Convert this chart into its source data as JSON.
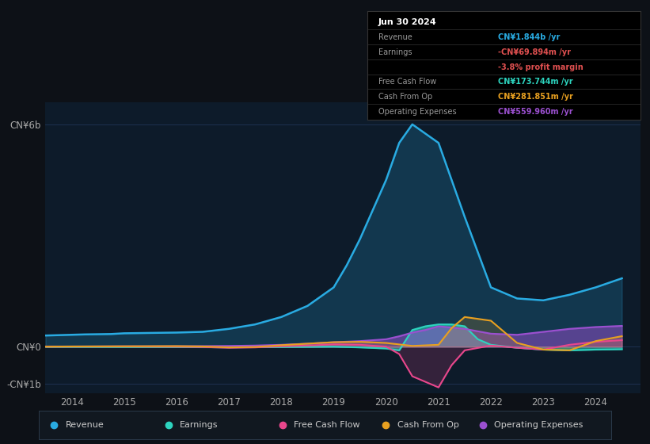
{
  "background_color": "#0d1117",
  "plot_bg_color": "#0d1b2a",
  "grid_color": "#1e3050",
  "y_ticks": [
    6000000000,
    0,
    -1000000000
  ],
  "y_tick_labels": [
    "CN¥6b",
    "CN¥0",
    "-CN¥1b"
  ],
  "x_ticks": [
    2014,
    2015,
    2016,
    2017,
    2018,
    2019,
    2020,
    2021,
    2022,
    2023,
    2024
  ],
  "legend": [
    {
      "label": "Revenue",
      "color": "#29abe2"
    },
    {
      "label": "Earnings",
      "color": "#2dd4bf"
    },
    {
      "label": "Free Cash Flow",
      "color": "#e8478c"
    },
    {
      "label": "Cash From Op",
      "color": "#e8a020"
    },
    {
      "label": "Operating Expenses",
      "color": "#9b50d0"
    }
  ],
  "infobox_title": "Jun 30 2024",
  "infobox_rows": [
    {
      "label": "Revenue",
      "value": "CN¥1.844b /yr",
      "value_color": "#29abe2",
      "label_color": "#999999"
    },
    {
      "label": "Earnings",
      "value": "-CN¥69.894m /yr",
      "value_color": "#e05050",
      "label_color": "#999999"
    },
    {
      "label": "",
      "value": "-3.8% profit margin",
      "value_color": "#e05050",
      "label_color": "#999999"
    },
    {
      "label": "Free Cash Flow",
      "value": "CN¥173.744m /yr",
      "value_color": "#2dd4bf",
      "label_color": "#999999"
    },
    {
      "label": "Cash From Op",
      "value": "CN¥281.851m /yr",
      "value_color": "#e8a020",
      "label_color": "#999999"
    },
    {
      "label": "Operating Expenses",
      "value": "CN¥559.960m /yr",
      "value_color": "#9b50d0",
      "label_color": "#999999"
    }
  ],
  "revenue_x": [
    2013.5,
    2014.0,
    2014.25,
    2014.75,
    2015.0,
    2015.5,
    2016.0,
    2016.5,
    2017.0,
    2017.5,
    2018.0,
    2018.5,
    2019.0,
    2019.25,
    2019.5,
    2019.75,
    2020.0,
    2020.25,
    2020.5,
    2021.0,
    2021.5,
    2022.0,
    2022.5,
    2023.0,
    2023.5,
    2024.0,
    2024.5
  ],
  "revenue_y": [
    300,
    320,
    330,
    340,
    360,
    370,
    380,
    400,
    480,
    600,
    800,
    1100,
    1600,
    2200,
    2900,
    3700,
    4500,
    5500,
    6000,
    5500,
    3500,
    1600,
    1300,
    1250,
    1400,
    1600,
    1844
  ],
  "earnings_x": [
    2013.5,
    2014.0,
    2015.0,
    2016.0,
    2016.5,
    2017.0,
    2017.5,
    2018.0,
    2018.5,
    2019.0,
    2019.5,
    2020.0,
    2020.25,
    2020.5,
    2020.75,
    2021.0,
    2021.25,
    2021.5,
    2021.75,
    2022.0,
    2022.5,
    2023.0,
    2023.5,
    2024.0,
    2024.5
  ],
  "earnings_y": [
    -5,
    -5,
    -8,
    -10,
    -15,
    -20,
    -15,
    -10,
    -5,
    0,
    -20,
    -50,
    -100,
    450,
    550,
    600,
    600,
    550,
    200,
    50,
    -30,
    -80,
    -100,
    -80,
    -70
  ],
  "fcf_x": [
    2013.5,
    2014.0,
    2015.0,
    2016.0,
    2016.5,
    2017.0,
    2017.5,
    2018.0,
    2018.5,
    2019.0,
    2019.5,
    2020.0,
    2020.25,
    2020.5,
    2021.0,
    2021.25,
    2021.5,
    2022.0,
    2022.5,
    2023.0,
    2023.5,
    2024.0,
    2024.5
  ],
  "fcf_y": [
    0,
    2,
    5,
    0,
    -10,
    -30,
    -20,
    10,
    30,
    60,
    50,
    0,
    -200,
    -800,
    -1100,
    -500,
    -100,
    30,
    -30,
    -80,
    50,
    130,
    174
  ],
  "cfop_x": [
    2013.5,
    2014.0,
    2015.0,
    2016.0,
    2016.5,
    2017.0,
    2017.5,
    2018.0,
    2018.5,
    2019.0,
    2019.5,
    2020.0,
    2020.5,
    2021.0,
    2021.25,
    2021.5,
    2021.75,
    2022.0,
    2022.25,
    2022.5,
    2023.0,
    2023.5,
    2024.0,
    2024.5
  ],
  "cfop_y": [
    0,
    5,
    10,
    15,
    5,
    -20,
    -10,
    40,
    80,
    120,
    130,
    100,
    20,
    50,
    500,
    800,
    750,
    700,
    400,
    100,
    -80,
    -100,
    150,
    282
  ],
  "opex_x": [
    2013.5,
    2014.0,
    2015.0,
    2016.0,
    2016.5,
    2017.0,
    2017.5,
    2018.0,
    2018.5,
    2019.0,
    2019.5,
    2020.0,
    2020.25,
    2020.5,
    2020.75,
    2021.0,
    2021.5,
    2022.0,
    2022.5,
    2023.0,
    2023.5,
    2024.0,
    2024.5
  ],
  "opex_y": [
    5,
    5,
    8,
    10,
    15,
    20,
    30,
    50,
    80,
    120,
    150,
    200,
    280,
    380,
    450,
    550,
    480,
    350,
    320,
    400,
    480,
    530,
    560
  ]
}
